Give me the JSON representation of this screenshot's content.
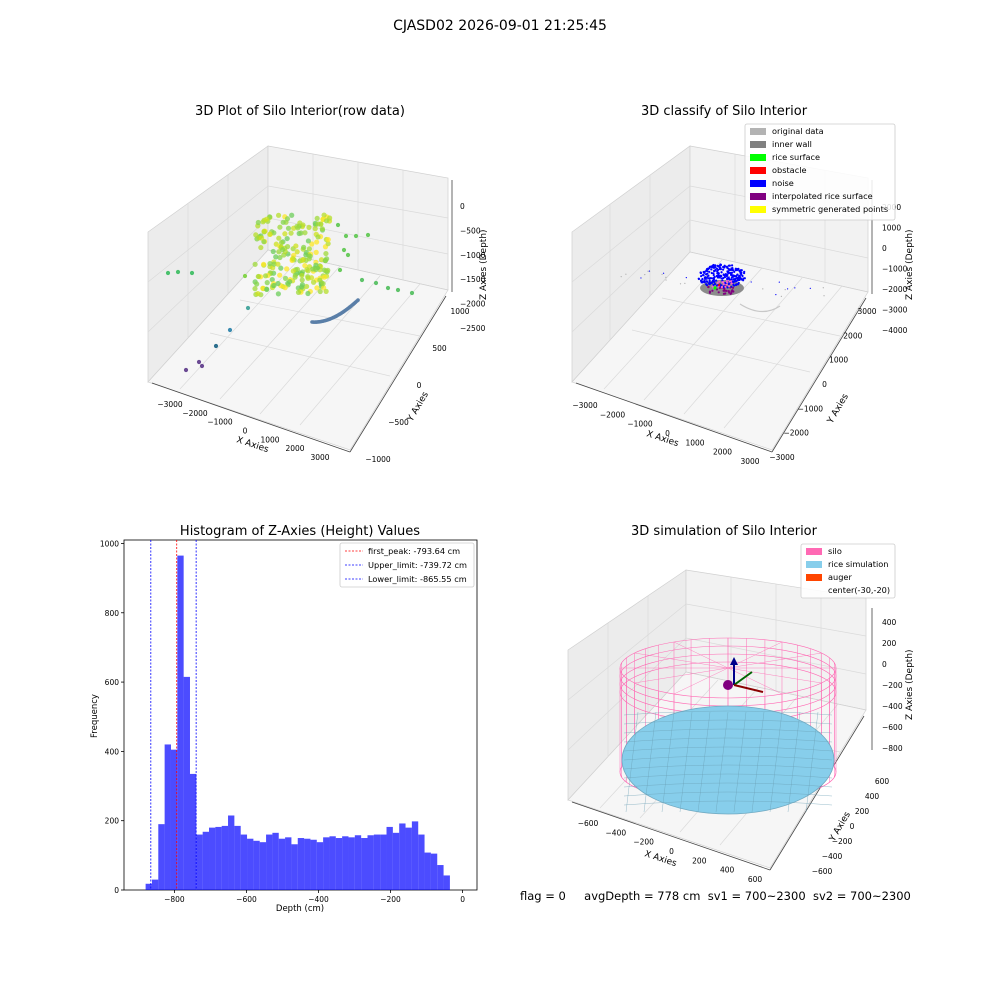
{
  "suptitle": "CJASD02 2026-09-01 21:25:45",
  "status": {
    "flag": "flag = 0",
    "avg": "avgDepth = 778 cm",
    "sv1": "sv1 = 700~2300",
    "sv2": "sv2 = 700~2300"
  },
  "colors": {
    "original": "#b3b3b3",
    "inner_wall": "#808080",
    "rice_surface": "#00ff00",
    "obstacle": "#ff0000",
    "noise": "#0000ff",
    "interp": "#800080",
    "symmetric": "#ffff00",
    "silo": "#ff69b4",
    "rice_sim": "#87ceeb",
    "auger": "#ff4500",
    "hist": "#0000ff"
  },
  "chart_data": [
    {
      "type": "scatter",
      "title": "3D Plot of Silo Interior(row data)",
      "xlabel": "X Axies",
      "ylabel": "Y Axies",
      "zlabel": "Z Axies (Depth)",
      "x_ticks": [
        "−3000",
        "−2000",
        "−1000",
        "0",
        "1000",
        "2000",
        "3000"
      ],
      "y_ticks": [
        "−1000",
        "−500",
        "0",
        "500",
        "1000"
      ],
      "z_ticks": [
        "−2500",
        "−2000",
        "−1500",
        "−1000",
        "−500",
        "0"
      ],
      "xlim": [
        -3400,
        3400
      ],
      "ylim": [
        -1000,
        1200
      ],
      "zlim": [
        -2700,
        100
      ],
      "colormap": "viridis by depth"
    },
    {
      "type": "scatter",
      "title": "3D classify of Silo Interior",
      "xlabel": "X Axies",
      "ylabel": "Y Axies",
      "zlabel": "Z Axies (Depth)",
      "x_ticks": [
        "−3000",
        "−2000",
        "−1000",
        "0",
        "1000",
        "2000",
        "3000"
      ],
      "y_ticks": [
        "−3000",
        "−2000",
        "−1000",
        "0",
        "1000",
        "2000",
        "3000"
      ],
      "z_ticks": [
        "−4000",
        "−3000",
        "−2000",
        "−1000",
        "0",
        "1000",
        "2000"
      ],
      "legend": [
        "original data",
        "inner wall",
        "rice surface",
        "obstacle",
        "noise",
        "interpolated rice surface",
        "symmetric generated points"
      ],
      "legend_position": "top-right"
    },
    {
      "type": "bar",
      "title": "Histogram of Z-Axies (Height) Values",
      "xlabel": "Depth (cm)",
      "ylabel": "Frequency",
      "xlim": [
        -940,
        40
      ],
      "ylim": [
        0,
        1010
      ],
      "x_ticks": [
        -800,
        -600,
        -400,
        -200,
        0
      ],
      "x_tick_labels": [
        "−800",
        "−600",
        "−400",
        "−200",
        "0"
      ],
      "y_ticks": [
        0,
        200,
        400,
        600,
        800,
        1000
      ],
      "bin_start": -880,
      "bin_width": 17.6,
      "values": [
        18,
        30,
        190,
        420,
        405,
        965,
        615,
        335,
        160,
        168,
        180,
        182,
        185,
        215,
        185,
        160,
        148,
        142,
        138,
        160,
        165,
        148,
        152,
        132,
        150,
        148,
        145,
        138,
        152,
        155,
        150,
        155,
        152,
        158,
        150,
        158,
        160,
        160,
        182,
        165,
        192,
        180,
        198,
        160,
        108,
        105,
        72,
        42
      ],
      "vlines": [
        {
          "label": "first_peak: -793.64 cm",
          "x": -793.64,
          "color": "#ff0000"
        },
        {
          "label": "Upper_limit: -739.72 cm",
          "x": -739.72,
          "color": "#0000ff"
        },
        {
          "label": "Lower_limit: -865.55 cm",
          "x": -865.55,
          "color": "#0000ff"
        }
      ],
      "legend_position": "top-right"
    },
    {
      "type": "surface",
      "title": "3D simulation of Silo Interior",
      "xlabel": "X Axies",
      "ylabel": "Y Axies",
      "zlabel": "Z Axies (Depth)",
      "x_ticks": [
        "−600",
        "−400",
        "−200",
        "0",
        "200",
        "400",
        "600"
      ],
      "y_ticks": [
        "−600",
        "−400",
        "−200",
        "0",
        "200",
        "400",
        "600"
      ],
      "z_ticks": [
        "−800",
        "−600",
        "−400",
        "−200",
        "0",
        "200",
        "400"
      ],
      "legend": [
        "silo",
        "rice simulation",
        "auger",
        "center(-30,-20)"
      ],
      "legend_position": "top-right"
    }
  ]
}
